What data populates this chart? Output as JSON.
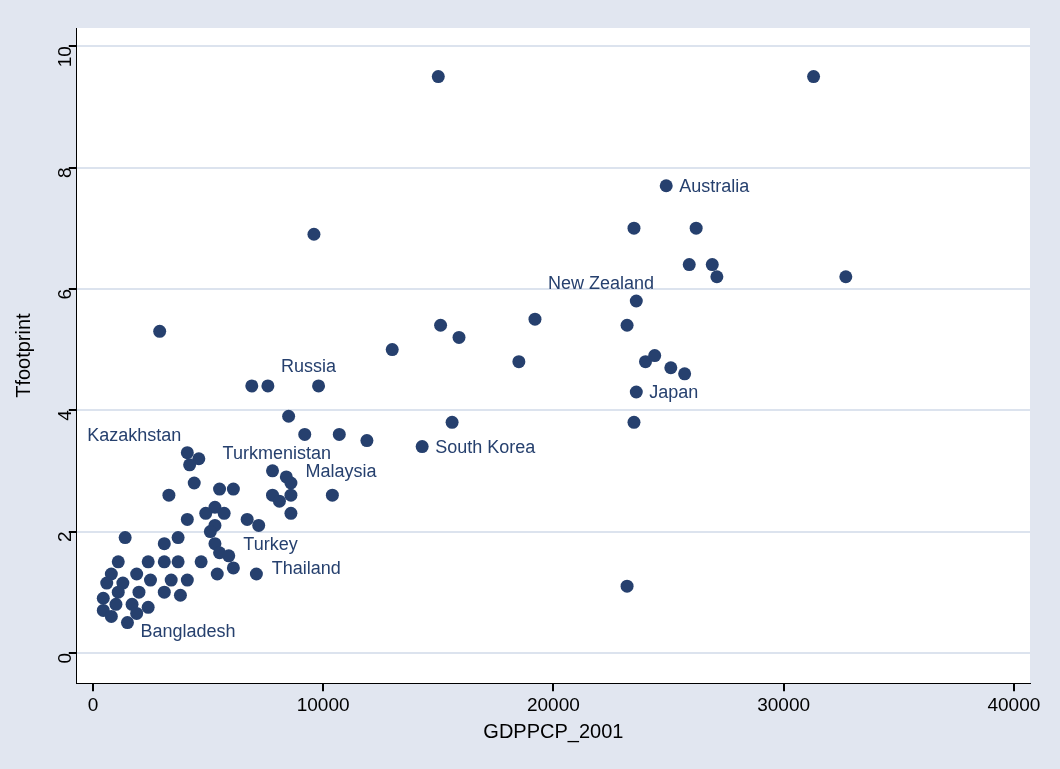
{
  "chart_data": {
    "type": "scatter",
    "xlabel": "GDPPCP_2001",
    "ylabel": "Tfootprint",
    "x": [
      15000,
      31300,
      24900,
      23500,
      26200,
      2900,
      9600,
      25900,
      26900,
      27100,
      32700,
      23600,
      19200,
      23200,
      15100,
      15900,
      13000,
      18500,
      24000,
      24400,
      25100,
      25700,
      23600,
      6900,
      7600,
      9800,
      8500,
      9200,
      10700,
      11900,
      15600,
      23500,
      14300,
      23200,
      10400,
      4100,
      4600,
      4200,
      7800,
      8400,
      8600,
      4400,
      5500,
      6100,
      3300,
      7800,
      8600,
      8100,
      8600,
      5300,
      4900,
      5700,
      4100,
      6700,
      7200,
      5300,
      5100,
      1400,
      3700,
      3100,
      5300,
      5500,
      5900,
      1100,
      2400,
      3100,
      3700,
      4700,
      6100,
      7100,
      800,
      1900,
      5400,
      600,
      1300,
      2500,
      3400,
      4100,
      450,
      1100,
      2000,
      3100,
      3800,
      450,
      1000,
      1700,
      2400,
      800,
      1500,
      1900
    ],
    "series": [
      {
        "color": "#26406e",
        "values": [
          9.5,
          9.5,
          7.7,
          7.0,
          7.0,
          5.3,
          6.9,
          6.4,
          6.4,
          6.2,
          6.2,
          5.8,
          5.5,
          5.4,
          5.4,
          5.2,
          5.0,
          4.8,
          4.8,
          4.9,
          4.7,
          4.6,
          4.3,
          4.4,
          4.4,
          4.4,
          3.9,
          3.6,
          3.6,
          3.5,
          3.8,
          3.8,
          3.4,
          1.1,
          2.6,
          3.3,
          3.2,
          3.1,
          3.0,
          2.9,
          2.8,
          2.8,
          2.7,
          2.7,
          2.6,
          2.6,
          2.6,
          2.5,
          2.3,
          2.4,
          2.3,
          2.3,
          2.2,
          2.2,
          2.1,
          2.1,
          2.0,
          1.9,
          1.9,
          1.8,
          1.8,
          1.65,
          1.6,
          1.5,
          1.5,
          1.5,
          1.5,
          1.5,
          1.4,
          1.3,
          1.3,
          1.3,
          1.3,
          1.15,
          1.15,
          1.2,
          1.2,
          1.2,
          0.9,
          1.0,
          1.0,
          1.0,
          0.95,
          0.7,
          0.8,
          0.8,
          0.75,
          0.6,
          0.5,
          0.65
        ]
      }
    ],
    "annotations": [
      {
        "text": "Australia",
        "x": 24900,
        "y": 7.7
      },
      {
        "text": "New Zealand",
        "x": 19200,
        "y": 5.5
      },
      {
        "text": "Japan",
        "x": 23600,
        "y": 4.3
      },
      {
        "text": "Russia",
        "x": 7600,
        "y": 4.4
      },
      {
        "text": "South Korea",
        "x": 14300,
        "y": 3.4
      },
      {
        "text": "Turkmenistan",
        "x": 4200,
        "y": 3.1
      },
      {
        "text": "Malaysia",
        "x": 7800,
        "y": 3.0
      },
      {
        "text": "Kazakhstan",
        "x": 4400,
        "y": 2.8
      },
      {
        "text": "Turkey",
        "x": 5100,
        "y": 2.0
      },
      {
        "text": "Thailand",
        "x": 5900,
        "y": 1.6
      },
      {
        "text": "Bangladesh",
        "x": 1500,
        "y": 0.5
      }
    ],
    "xlim": [
      -700,
      40700
    ],
    "xticks": [
      0,
      10000,
      20000,
      30000,
      40000
    ],
    "ylim": [
      -0.5,
      10.3
    ],
    "yticks": [
      0,
      2,
      4,
      6,
      8,
      10
    ],
    "grid": "y",
    "marker": "circle",
    "legend": false
  }
}
